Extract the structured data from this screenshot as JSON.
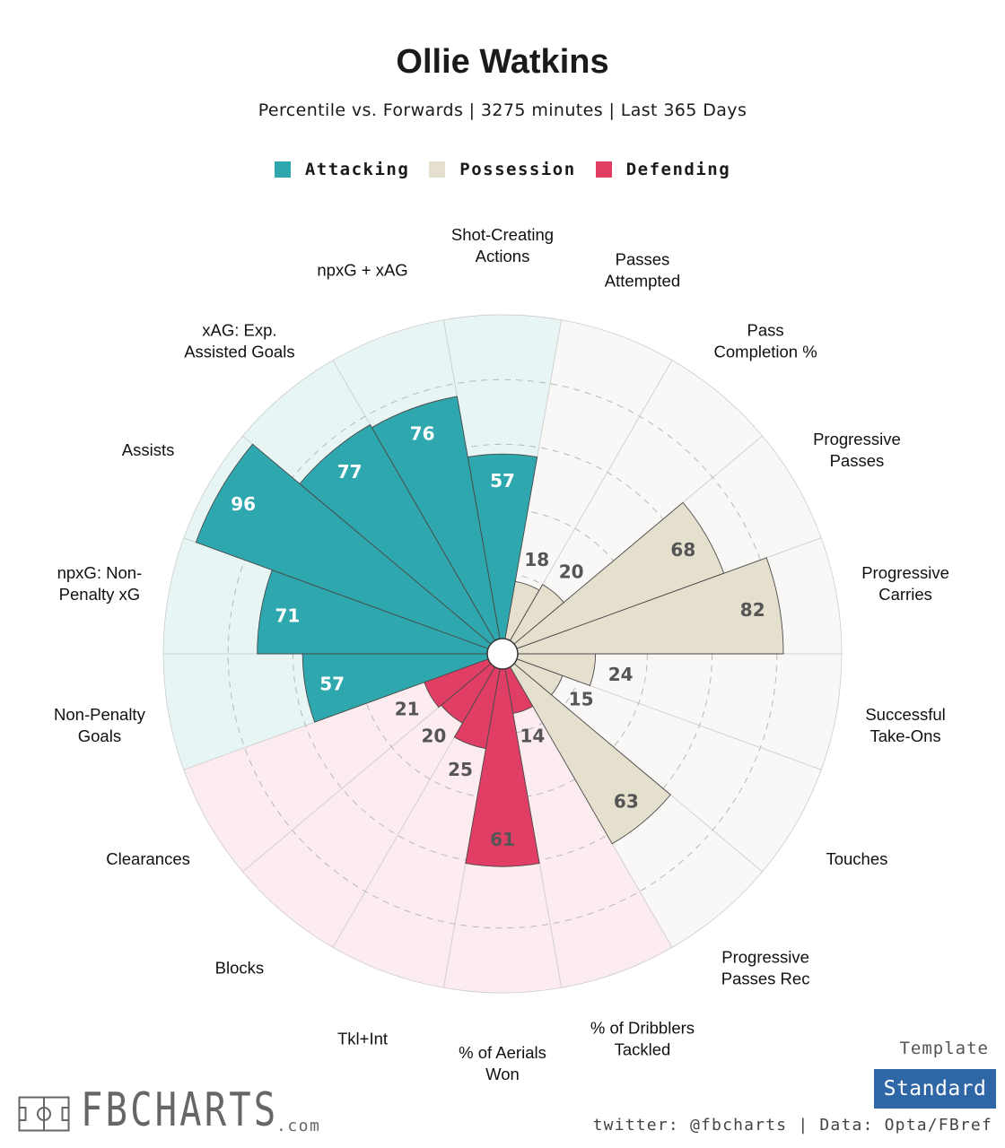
{
  "title": "Ollie Watkins",
  "subtitle": "Percentile vs. Forwards | 3275 minutes | Last 365 Days",
  "legend": [
    {
      "label": "Attacking",
      "color": "#2ea8ae"
    },
    {
      "label": "Possession",
      "color": "#e5dfcd"
    },
    {
      "label": "Defending",
      "color": "#e03e65"
    }
  ],
  "template": {
    "label": "Template",
    "value": "Standard"
  },
  "credit": "twitter: @fbcharts | Data: Opta/FBref",
  "brand": {
    "name": "FBCHARTS",
    "suffix": ".com"
  },
  "chart_data": {
    "type": "polar-bar",
    "title": "Ollie Watkins",
    "rlim": [
      0,
      100
    ],
    "gridlines": [
      20,
      40,
      60,
      80
    ],
    "categories": [
      {
        "label": "Shot-Creating Actions",
        "lines": [
          "Shot-Creating",
          "Actions"
        ],
        "value": 57,
        "group": "Attacking"
      },
      {
        "label": "Passes Attempted",
        "lines": [
          "Passes",
          "Attempted"
        ],
        "value": 18,
        "group": "Possession"
      },
      {
        "label": "Pass Completion %",
        "lines": [
          "Pass",
          "Completion %"
        ],
        "value": 20,
        "group": "Possession"
      },
      {
        "label": "Progressive Passes",
        "lines": [
          "Progressive",
          "Passes"
        ],
        "value": 68,
        "group": "Possession"
      },
      {
        "label": "Progressive Carries",
        "lines": [
          "Progressive",
          "Carries"
        ],
        "value": 82,
        "group": "Possession"
      },
      {
        "label": "Successful Take-Ons",
        "lines": [
          "Successful",
          "Take-Ons"
        ],
        "value": 24,
        "group": "Possession"
      },
      {
        "label": "Touches",
        "lines": [
          "Touches"
        ],
        "value": 15,
        "group": "Possession"
      },
      {
        "label": "Progressive Passes Rec",
        "lines": [
          "Progressive",
          "Passes Rec"
        ],
        "value": 63,
        "group": "Possession"
      },
      {
        "label": "% of Dribblers Tackled",
        "lines": [
          "% of Dribblers",
          "Tackled"
        ],
        "value": 14,
        "group": "Defending"
      },
      {
        "label": "% of Aerials Won",
        "lines": [
          "% of Aerials",
          "Won"
        ],
        "value": 61,
        "group": "Defending"
      },
      {
        "label": "Tkl+Int",
        "lines": [
          "Tkl+Int"
        ],
        "value": 25,
        "group": "Defending"
      },
      {
        "label": "Blocks",
        "lines": [
          "Blocks"
        ],
        "value": 20,
        "group": "Defending"
      },
      {
        "label": "Clearances",
        "lines": [
          "Clearances"
        ],
        "value": 21,
        "group": "Defending"
      },
      {
        "label": "Non-Penalty Goals",
        "lines": [
          "Non-Penalty",
          "Goals"
        ],
        "value": 57,
        "group": "Attacking"
      },
      {
        "label": "npxG: Non-Penalty xG",
        "lines": [
          "npxG: Non-",
          "Penalty xG"
        ],
        "value": 71,
        "group": "Attacking"
      },
      {
        "label": "Assists",
        "lines": [
          "Assists"
        ],
        "value": 96,
        "group": "Attacking"
      },
      {
        "label": "xAG: Exp. Assisted Goals",
        "lines": [
          "xAG: Exp.",
          "Assisted Goals"
        ],
        "value": 77,
        "group": "Attacking"
      },
      {
        "label": "npxG + xAG",
        "lines": [
          "npxG + xAG"
        ],
        "value": 76,
        "group": "Attacking"
      }
    ],
    "group_colors": {
      "Attacking": {
        "bar": "#2ea8ae",
        "background": "#e8f5f5",
        "value_text": "#ffffff"
      },
      "Possession": {
        "bar": "#e5dfcd",
        "background": "#faf8f6",
        "value_text": "#555555"
      },
      "Defending": {
        "bar": "#e03e65",
        "background": "#fcecf0",
        "value_text": "#555555"
      }
    }
  }
}
